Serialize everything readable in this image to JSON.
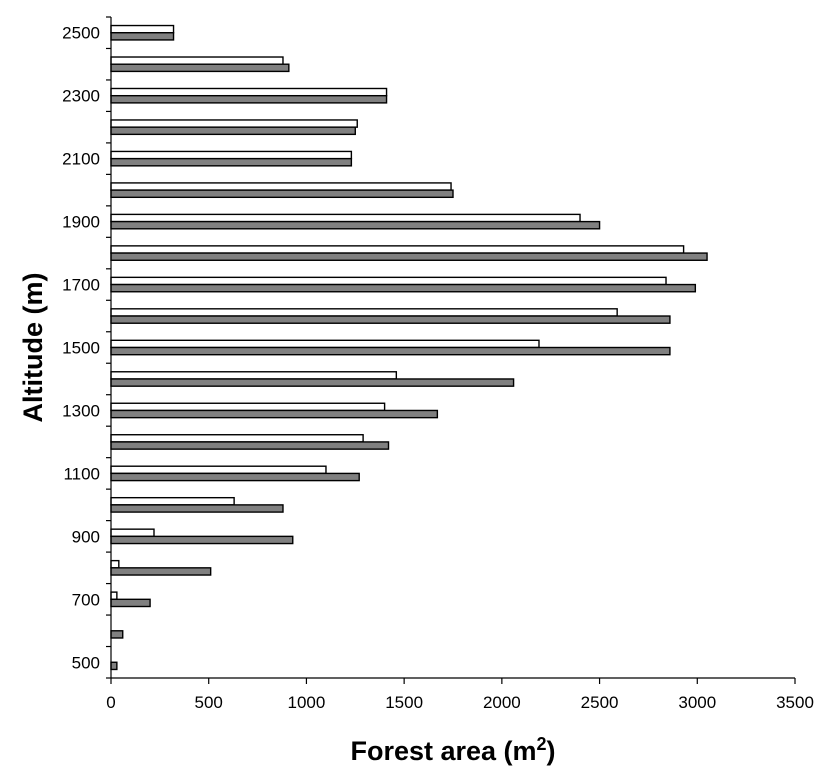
{
  "chart_data": {
    "type": "bar",
    "orientation": "horizontal",
    "xlabel_main": "Forest area (m",
    "xlabel_sup": "2",
    "xlabel_close": ")",
    "ylabel": "Altitude (m)",
    "xlim": [
      0,
      3500
    ],
    "xticks": [
      "0",
      "500",
      "1000",
      "1500",
      "2000",
      "2500",
      "3000",
      "3500"
    ],
    "yticks": [
      "500",
      "700",
      "900",
      "1100",
      "1300",
      "1500",
      "1700",
      "1900",
      "2100",
      "2300",
      "2500"
    ],
    "ylim": [
      450,
      2550
    ],
    "categories": [
      500,
      600,
      700,
      800,
      900,
      1000,
      1100,
      1200,
      1300,
      1400,
      1500,
      1600,
      1700,
      1800,
      1900,
      2000,
      2100,
      2200,
      2300,
      2400,
      2500
    ],
    "series": [
      {
        "color": "#ffffff",
        "values": [
          null,
          null,
          30,
          40,
          220,
          630,
          1100,
          1290,
          1400,
          1460,
          2190,
          2590,
          2840,
          2930,
          2400,
          1740,
          1230,
          1260,
          1410,
          880,
          320
        ]
      },
      {
        "color": "#808080",
        "values": [
          30,
          60,
          200,
          510,
          930,
          880,
          1270,
          1420,
          1670,
          2060,
          2860,
          2860,
          2990,
          3050,
          2500,
          1750,
          1230,
          1250,
          1410,
          910,
          320
        ]
      }
    ],
    "grid": false,
    "legend": "none"
  }
}
